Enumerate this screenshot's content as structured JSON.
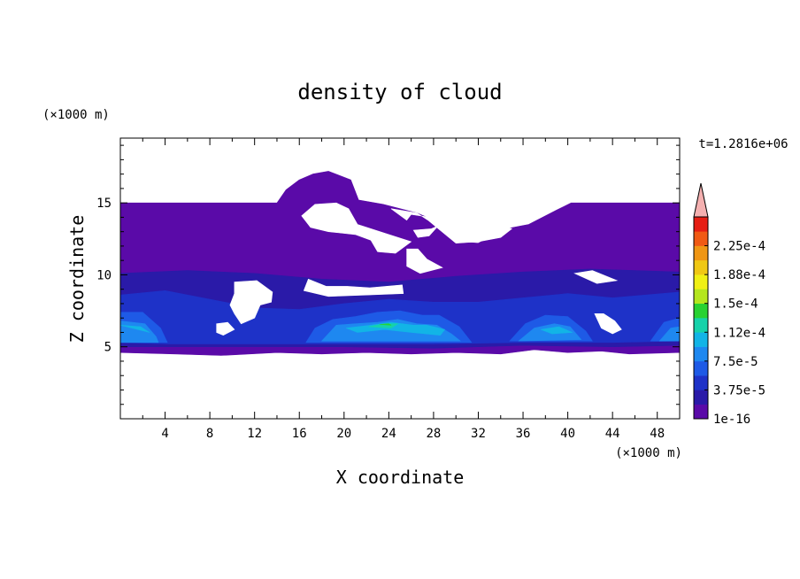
{
  "chart_data": {
    "type": "heatmap",
    "title": "density of cloud",
    "xlabel": "X coordinate",
    "ylabel": "Z coordinate",
    "x_unit": "(×1000 m)",
    "y_unit": "(×1000 m)",
    "time_label": "t=1.2816e+06",
    "xlim": [
      0,
      50
    ],
    "ylim": [
      0,
      19.5
    ],
    "xticks": [
      "4",
      "8",
      "12",
      "16",
      "20",
      "24",
      "28",
      "32",
      "36",
      "40",
      "44",
      "48"
    ],
    "yticks": [
      "5",
      "10",
      "15"
    ],
    "colorbar": {
      "labels": [
        "1e-16",
        "3.75e-5",
        "7.5e-5",
        "1.12e-4",
        "1.5e-4",
        "1.88e-4",
        "2.25e-4"
      ],
      "level_values": [
        1e-16,
        1.875e-05,
        3.75e-05,
        5.625e-05,
        7.5e-05,
        9.375e-05,
        0.0001125,
        0.00013125,
        0.00015,
        0.00016875,
        0.0001875,
        0.00020625,
        0.000225,
        0.00024375
      ],
      "colors": [
        "#5a0aa8",
        "#2a1aa8",
        "#1e32c8",
        "#1e5ae6",
        "#1e88f0",
        "#12b4e6",
        "#16d2aa",
        "#28d232",
        "#b4e61e",
        "#f0f014",
        "#f0c814",
        "#f09614",
        "#f05a14",
        "#e61e14"
      ],
      "extend_color": "#f4b0b0"
    },
    "regions": [
      {
        "level": 0,
        "note": "cloud envelope",
        "points": [
          [
            0,
            15
          ],
          [
            14,
            15
          ],
          [
            14.8,
            15.9
          ],
          [
            16,
            16.6
          ],
          [
            17.2,
            17
          ],
          [
            18.6,
            17.2
          ],
          [
            20.6,
            16.6
          ],
          [
            21.3,
            15.2
          ],
          [
            23.5,
            14.9
          ],
          [
            25,
            14.6
          ],
          [
            26.5,
            14.3
          ],
          [
            28,
            13.8
          ],
          [
            30,
            12.3
          ],
          [
            32,
            12.2
          ],
          [
            34.5,
            13.2
          ],
          [
            36.5,
            13.5
          ],
          [
            39,
            14.5
          ],
          [
            40.3,
            15
          ],
          [
            50,
            15
          ],
          [
            50,
            4.6
          ],
          [
            45.5,
            4.5
          ],
          [
            43,
            4.7
          ],
          [
            40,
            4.6
          ],
          [
            37,
            4.8
          ],
          [
            34,
            4.5
          ],
          [
            30,
            4.6
          ],
          [
            26,
            4.5
          ],
          [
            22,
            4.6
          ],
          [
            18,
            4.5
          ],
          [
            14,
            4.6
          ],
          [
            9,
            4.4
          ],
          [
            4.8,
            4.5
          ],
          [
            0,
            4.6
          ]
        ]
      },
      {
        "level": 1,
        "points": [
          [
            0,
            10.1
          ],
          [
            6,
            10.3
          ],
          [
            12,
            10.1
          ],
          [
            18,
            9.7
          ],
          [
            24,
            9.5
          ],
          [
            30,
            9.9
          ],
          [
            36,
            10.2
          ],
          [
            42,
            10.4
          ],
          [
            50,
            10.2
          ],
          [
            50,
            5.1
          ],
          [
            44,
            5
          ],
          [
            36,
            5.1
          ],
          [
            28,
            4.9
          ],
          [
            20,
            5
          ],
          [
            12,
            5
          ],
          [
            0,
            5
          ]
        ]
      },
      {
        "level": 2,
        "points": [
          [
            0,
            8.6
          ],
          [
            4,
            8.9
          ],
          [
            8,
            8.3
          ],
          [
            12,
            7.7
          ],
          [
            16,
            7.6
          ],
          [
            20,
            8
          ],
          [
            24,
            8.3
          ],
          [
            28,
            8.1
          ],
          [
            32,
            8.1
          ],
          [
            36,
            8.4
          ],
          [
            40,
            8.7
          ],
          [
            44,
            8.4
          ],
          [
            50,
            8.8
          ],
          [
            50,
            5.4
          ],
          [
            44,
            5.3
          ],
          [
            36,
            5.3
          ],
          [
            28,
            5.2
          ],
          [
            20,
            5.2
          ],
          [
            12,
            5.2
          ],
          [
            4,
            5.2
          ],
          [
            0,
            5.3
          ]
        ]
      },
      {
        "level": 3,
        "points": [
          [
            0,
            7.4
          ],
          [
            2,
            7.4
          ],
          [
            3.6,
            6.3
          ],
          [
            4.2,
            5.3
          ],
          [
            0,
            5.3
          ]
        ]
      },
      {
        "level": 3,
        "points": [
          [
            16.6,
            5.3
          ],
          [
            17.4,
            6.3
          ],
          [
            19,
            6.9
          ],
          [
            21,
            7.1
          ],
          [
            23,
            7.4
          ],
          [
            25,
            7.5
          ],
          [
            27,
            7.2
          ],
          [
            28.5,
            7.2
          ],
          [
            30.3,
            6.4
          ],
          [
            31.4,
            5.3
          ]
        ]
      },
      {
        "level": 3,
        "points": [
          [
            34.8,
            5.4
          ],
          [
            36.2,
            6.6
          ],
          [
            38,
            7.2
          ],
          [
            40,
            7.1
          ],
          [
            41.6,
            6.1
          ],
          [
            42.2,
            5.4
          ]
        ]
      },
      {
        "level": 3,
        "points": [
          [
            47.4,
            5.4
          ],
          [
            48.6,
            6.7
          ],
          [
            50,
            7
          ],
          [
            50,
            5.4
          ]
        ]
      },
      {
        "level": 4,
        "points": [
          [
            0,
            6.8
          ],
          [
            2.2,
            6.6
          ],
          [
            3.2,
            5.7
          ],
          [
            3.4,
            5.3
          ],
          [
            0,
            5.3
          ]
        ]
      },
      {
        "level": 4,
        "points": [
          [
            18,
            5.4
          ],
          [
            19.3,
            6.5
          ],
          [
            21,
            6.6
          ],
          [
            23,
            6.7
          ],
          [
            24.8,
            6.9
          ],
          [
            26.5,
            6.6
          ],
          [
            28.3,
            6.5
          ],
          [
            29.6,
            5.9
          ],
          [
            30.4,
            5.4
          ]
        ]
      },
      {
        "level": 4,
        "points": [
          [
            35.6,
            5.4
          ],
          [
            37,
            6.3
          ],
          [
            38.8,
            6.6
          ],
          [
            40.2,
            6.4
          ],
          [
            41.2,
            5.5
          ]
        ]
      },
      {
        "level": 4,
        "points": [
          [
            48.2,
            5.4
          ],
          [
            49.2,
            6.3
          ],
          [
            50,
            6.4
          ],
          [
            50,
            5.4
          ]
        ]
      },
      {
        "level": 5,
        "points": [
          [
            0,
            6.5
          ],
          [
            1.8,
            6.4
          ],
          [
            2.6,
            6
          ]
        ]
      },
      {
        "level": 5,
        "points": [
          [
            20.2,
            6.3
          ],
          [
            22.4,
            6.5
          ],
          [
            24.2,
            6.7
          ],
          [
            26.2,
            6.5
          ],
          [
            27.4,
            6.5
          ],
          [
            29,
            6.2
          ],
          [
            28.6,
            5.8
          ],
          [
            26,
            6
          ],
          [
            23.6,
            6.2
          ],
          [
            21.2,
            6
          ]
        ]
      },
      {
        "level": 5,
        "points": [
          [
            37.6,
            6.2
          ],
          [
            39.2,
            6.4
          ],
          [
            40.4,
            6
          ],
          [
            38.6,
            5.9
          ]
        ]
      },
      {
        "level": 6,
        "points": [
          [
            22.2,
            6.4
          ],
          [
            23.6,
            6.6
          ],
          [
            24.8,
            6.6
          ],
          [
            24.2,
            6.3
          ]
        ]
      },
      {
        "level": 7,
        "points": [
          [
            23.2,
            6.55
          ],
          [
            24,
            6.6
          ],
          [
            24.2,
            6.5
          ]
        ]
      }
    ],
    "gaps": [
      {
        "points": [
          [
            24.2,
            14.6
          ],
          [
            26.5,
            14.3
          ],
          [
            27.5,
            13.8
          ],
          [
            30,
            12.2
          ],
          [
            32,
            12.3
          ],
          [
            34,
            12.6
          ],
          [
            35,
            13.2
          ],
          [
            33.5,
            13.6
          ],
          [
            30.5,
            13.7
          ],
          [
            28.5,
            13.9
          ],
          [
            26,
            14.2
          ],
          [
            25.6,
            13.8
          ]
        ]
      },
      {
        "points": [
          [
            26.2,
            13.1
          ],
          [
            27.8,
            13.2
          ],
          [
            28.4,
            13.4
          ],
          [
            27.6,
            12.7
          ],
          [
            26.6,
            12.6
          ]
        ]
      },
      {
        "points": [
          [
            17.4,
            14.9
          ],
          [
            19.3,
            15
          ],
          [
            20.4,
            14.6
          ],
          [
            21.2,
            13.5
          ],
          [
            24,
            12.8
          ],
          [
            26,
            12.3
          ],
          [
            24.6,
            11.5
          ],
          [
            23,
            11.6
          ],
          [
            22.4,
            12.4
          ],
          [
            21,
            12.8
          ],
          [
            18.6,
            13
          ],
          [
            17,
            13.3
          ],
          [
            16.2,
            14.1
          ]
        ]
      },
      {
        "points": [
          [
            25.6,
            11.8
          ],
          [
            26.6,
            11.8
          ],
          [
            27.4,
            11.1
          ],
          [
            28.8,
            10.5
          ],
          [
            26.8,
            10.1
          ],
          [
            25.6,
            10.6
          ]
        ]
      },
      {
        "points": [
          [
            16.8,
            9.7
          ],
          [
            18.4,
            9.2
          ],
          [
            20.3,
            9.2
          ],
          [
            22.3,
            9.1
          ],
          [
            25.2,
            9.3
          ],
          [
            25.3,
            8.7
          ],
          [
            22,
            8.6
          ],
          [
            18.6,
            8.5
          ],
          [
            16.4,
            8.9
          ]
        ]
      },
      {
        "points": [
          [
            10.2,
            9.5
          ],
          [
            12.2,
            9.6
          ],
          [
            13.6,
            8.8
          ],
          [
            13.5,
            8.1
          ],
          [
            12.5,
            7.9
          ],
          [
            12,
            7
          ],
          [
            10.8,
            6.6
          ],
          [
            10.2,
            7.3
          ],
          [
            9.8,
            7.9
          ],
          [
            10.2,
            8.7
          ]
        ]
      },
      {
        "points": [
          [
            8.6,
            6.6
          ],
          [
            9.6,
            6.7
          ],
          [
            10.2,
            6.2
          ],
          [
            9.2,
            5.8
          ],
          [
            8.6,
            6
          ]
        ]
      },
      {
        "points": [
          [
            42.4,
            7.3
          ],
          [
            43.2,
            7.3
          ],
          [
            44.2,
            6.8
          ],
          [
            44.8,
            6.2
          ],
          [
            44,
            5.9
          ],
          [
            43,
            6.3
          ]
        ]
      },
      {
        "points": [
          [
            40.6,
            10.1
          ],
          [
            42.2,
            10.3
          ],
          [
            44.4,
            9.6
          ],
          [
            42.6,
            9.4
          ]
        ]
      }
    ]
  }
}
